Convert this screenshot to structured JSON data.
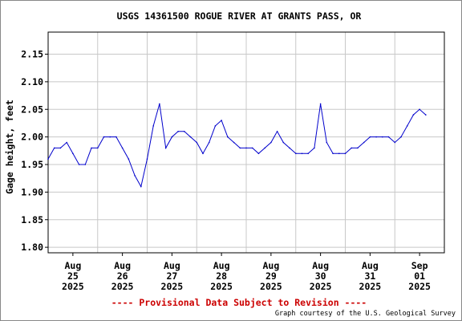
{
  "chart_data": {
    "type": "line",
    "title": "USGS 14361500 ROGUE RIVER AT GRANTS PASS, OR",
    "ylabel": "Gage height, feet",
    "xlabel": "",
    "ylim": [
      1.79,
      2.19
    ],
    "xlim": [
      0,
      8.0
    ],
    "grid": true,
    "yticks": [
      "2.15",
      "2.10",
      "2.05",
      "2.00",
      "1.95",
      "1.90",
      "1.85",
      "1.80"
    ],
    "xticks": [
      {
        "month": "Aug",
        "day": "25",
        "year": "2025"
      },
      {
        "month": "Aug",
        "day": "26",
        "year": "2025"
      },
      {
        "month": "Aug",
        "day": "27",
        "year": "2025"
      },
      {
        "month": "Aug",
        "day": "28",
        "year": "2025"
      },
      {
        "month": "Aug",
        "day": "29",
        "year": "2025"
      },
      {
        "month": "Aug",
        "day": "30",
        "year": "2025"
      },
      {
        "month": "Aug",
        "day": "31",
        "year": "2025"
      },
      {
        "month": "Sep",
        "day": "01",
        "year": "2025"
      }
    ],
    "series": [
      {
        "color": "#0000cc",
        "x": [
          "Aug 24 12:00",
          "Aug 24 15:00",
          "Aug 24 18:00",
          "Aug 24 21:00",
          "Aug 25 00:00",
          "Aug 25 03:00",
          "Aug 25 06:00",
          "Aug 25 09:00",
          "Aug 25 12:00",
          "Aug 25 15:00",
          "Aug 25 18:00",
          "Aug 25 21:00",
          "Aug 26 00:00",
          "Aug 26 03:00",
          "Aug 26 06:00",
          "Aug 26 09:00",
          "Aug 26 12:00",
          "Aug 26 15:00",
          "Aug 26 18:00",
          "Aug 26 21:00",
          "Aug 27 00:00",
          "Aug 27 03:00",
          "Aug 27 06:00",
          "Aug 27 09:00",
          "Aug 27 12:00",
          "Aug 27 15:00",
          "Aug 27 18:00",
          "Aug 27 21:00",
          "Aug 28 00:00",
          "Aug 28 03:00",
          "Aug 28 06:00",
          "Aug 28 09:00",
          "Aug 28 12:00",
          "Aug 28 15:00",
          "Aug 28 18:00",
          "Aug 28 21:00",
          "Aug 29 00:00",
          "Aug 29 03:00",
          "Aug 29 06:00",
          "Aug 29 09:00",
          "Aug 29 12:00",
          "Aug 29 15:00",
          "Aug 29 18:00",
          "Aug 29 21:00",
          "Aug 30 00:00",
          "Aug 30 03:00",
          "Aug 30 06:00",
          "Aug 30 09:00",
          "Aug 30 12:00",
          "Aug 30 15:00",
          "Aug 30 18:00",
          "Aug 30 21:00",
          "Aug 31 00:00",
          "Aug 31 03:00",
          "Aug 31 06:00",
          "Aug 31 09:00",
          "Aug 31 12:00",
          "Aug 31 15:00",
          "Aug 31 18:00",
          "Aug 31 21:00",
          "Sep 01 00:00",
          "Sep 01 03:00"
        ],
        "y": [
          1.96,
          1.98,
          1.98,
          1.99,
          1.97,
          1.95,
          1.95,
          1.98,
          1.98,
          2.0,
          2.0,
          2.0,
          1.98,
          1.96,
          1.93,
          1.91,
          1.96,
          2.02,
          2.06,
          1.98,
          2.0,
          2.01,
          2.01,
          2.0,
          1.99,
          1.97,
          1.99,
          2.02,
          2.03,
          2.0,
          1.99,
          1.98,
          1.98,
          1.98,
          1.97,
          1.98,
          1.99,
          2.01,
          1.99,
          1.98,
          1.97,
          1.97,
          1.97,
          1.98,
          2.06,
          1.99,
          1.97,
          1.97,
          1.97,
          1.98,
          1.98,
          1.99,
          2.0,
          2.0,
          2.0,
          2.0,
          1.99,
          2.0,
          2.02,
          2.04,
          2.05,
          2.04
        ]
      }
    ],
    "footer_note": "---- Provisional Data Subject to Revision ----",
    "credit": "Graph courtesy of the U.S. Geological Survey"
  }
}
